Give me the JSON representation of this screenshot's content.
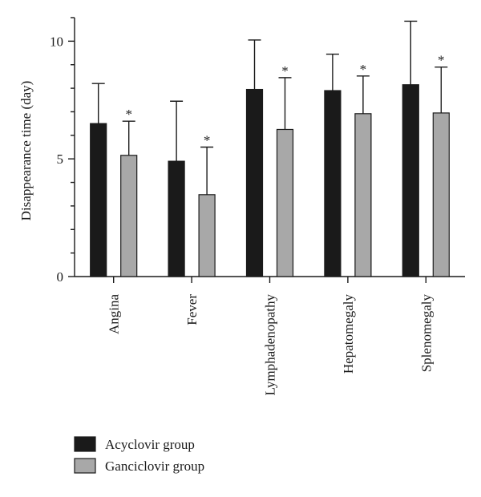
{
  "chart_data": {
    "type": "bar",
    "title": "",
    "xlabel": "",
    "ylabel": "Disappearance time (day)",
    "ylim": [
      0,
      11
    ],
    "yticks": [
      0,
      5,
      10
    ],
    "grid": false,
    "legend_position": "bottom-left",
    "categories": [
      "Angina",
      "Fever",
      "Lymphadenopathy",
      "Hepatomegaly",
      "Splenomegaly"
    ],
    "series": [
      {
        "name": "Acyclovir group",
        "color": "#1a1a1a",
        "values": [
          6.5,
          4.9,
          7.95,
          7.9,
          8.15
        ],
        "errors": [
          1.7,
          2.55,
          2.1,
          1.55,
          2.7
        ]
      },
      {
        "name": "Ganciclovir group",
        "color": "#a8a8a8",
        "values": [
          5.15,
          3.48,
          6.25,
          6.92,
          6.95
        ],
        "errors": [
          1.45,
          2.02,
          2.2,
          1.6,
          1.95
        ]
      }
    ],
    "significance": {
      "series": "Ganciclovir group",
      "marker": "*",
      "categories": [
        "Angina",
        "Fever",
        "Lymphadenopathy",
        "Hepatomegaly",
        "Splenomegaly"
      ]
    }
  }
}
